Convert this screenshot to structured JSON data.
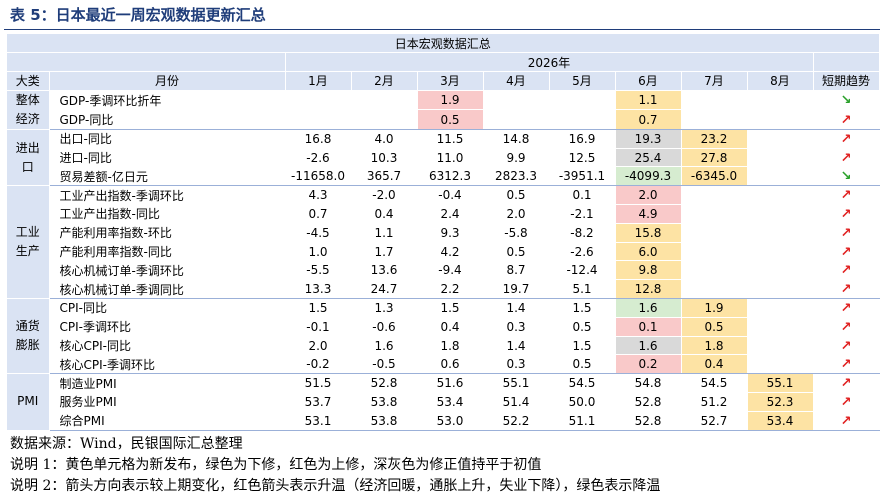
{
  "title": "表 5：日本最近一周宏观数据更新汇总",
  "table": {
    "caption": "日本宏观数据汇总",
    "year": "2026年",
    "headers": {
      "category": "大类",
      "month": "月份",
      "months": [
        "1月",
        "2月",
        "3月",
        "4月",
        "5月",
        "6月",
        "7月",
        "8月"
      ],
      "trend": "短期趋势"
    },
    "groups": [
      {
        "name": "整体经济",
        "rows": [
          {
            "label": "GDP-季调环比折年",
            "values": [
              "",
              "",
              "1.9",
              "",
              "",
              "1.1",
              "",
              ""
            ],
            "highlights": [
              "",
              "",
              "pink",
              "",
              "",
              "yellow",
              "",
              ""
            ],
            "trend": "down"
          },
          {
            "label": "GDP-同比",
            "values": [
              "",
              "",
              "0.5",
              "",
              "",
              "0.7",
              "",
              ""
            ],
            "highlights": [
              "",
              "",
              "pink",
              "",
              "",
              "yellow",
              "",
              ""
            ],
            "trend": "up"
          }
        ]
      },
      {
        "name": "进出口",
        "rows": [
          {
            "label": "出口-同比",
            "values": [
              "16.8",
              "4.0",
              "11.5",
              "14.8",
              "16.9",
              "19.3",
              "23.2",
              ""
            ],
            "highlights": [
              "",
              "",
              "",
              "",
              "",
              "gray",
              "yellow",
              ""
            ],
            "trend": "up"
          },
          {
            "label": "进口-同比",
            "values": [
              "-2.6",
              "10.3",
              "11.0",
              "9.9",
              "12.5",
              "25.4",
              "27.8",
              ""
            ],
            "highlights": [
              "",
              "",
              "",
              "",
              "",
              "gray",
              "yellow",
              ""
            ],
            "trend": "up"
          },
          {
            "label": "贸易差额-亿日元",
            "values": [
              "-11658.0",
              "365.7",
              "6312.3",
              "2823.3",
              "-3951.1",
              "-4099.3",
              "-6345.0",
              ""
            ],
            "highlights": [
              "",
              "",
              "",
              "",
              "",
              "green",
              "yellow",
              ""
            ],
            "trend": "down"
          }
        ]
      },
      {
        "name": "工业生产",
        "rows": [
          {
            "label": "工业产出指数-季调环比",
            "values": [
              "4.3",
              "-2.0",
              "-0.4",
              "0.5",
              "0.1",
              "2.0",
              "",
              ""
            ],
            "highlights": [
              "",
              "",
              "",
              "",
              "",
              "pink",
              "",
              ""
            ],
            "trend": "up"
          },
          {
            "label": "工业产出指数-同比",
            "values": [
              "0.7",
              "0.4",
              "2.4",
              "2.0",
              "-2.1",
              "4.9",
              "",
              ""
            ],
            "highlights": [
              "",
              "",
              "",
              "",
              "",
              "pink",
              "",
              ""
            ],
            "trend": "up"
          },
          {
            "label": "产能利用率指数-环比",
            "values": [
              "-4.5",
              "1.1",
              "9.3",
              "-5.8",
              "-8.2",
              "15.8",
              "",
              ""
            ],
            "highlights": [
              "",
              "",
              "",
              "",
              "",
              "yellow",
              "",
              ""
            ],
            "trend": "up"
          },
          {
            "label": "产能利用率指数-同比",
            "values": [
              "1.0",
              "1.7",
              "4.2",
              "0.5",
              "-2.6",
              "6.0",
              "",
              ""
            ],
            "highlights": [
              "",
              "",
              "",
              "",
              "",
              "yellow",
              "",
              ""
            ],
            "trend": "up"
          },
          {
            "label": "核心机械订单-季调环比",
            "values": [
              "-5.5",
              "13.6",
              "-9.4",
              "8.7",
              "-12.4",
              "9.8",
              "",
              ""
            ],
            "highlights": [
              "",
              "",
              "",
              "",
              "",
              "yellow",
              "",
              ""
            ],
            "trend": "up"
          },
          {
            "label": "核心机械订单-季调同比",
            "values": [
              "13.3",
              "24.7",
              "2.2",
              "19.7",
              "5.1",
              "12.8",
              "",
              ""
            ],
            "highlights": [
              "",
              "",
              "",
              "",
              "",
              "yellow",
              "",
              ""
            ],
            "trend": "up"
          }
        ]
      },
      {
        "name": "通货膨胀",
        "rows": [
          {
            "label": "CPI-同比",
            "values": [
              "1.5",
              "1.3",
              "1.5",
              "1.4",
              "1.5",
              "1.6",
              "1.9",
              ""
            ],
            "highlights": [
              "",
              "",
              "",
              "",
              "",
              "green",
              "yellow",
              ""
            ],
            "trend": "up"
          },
          {
            "label": "CPI-季调环比",
            "values": [
              "-0.1",
              "-0.6",
              "0.4",
              "0.3",
              "0.5",
              "0.1",
              "0.5",
              ""
            ],
            "highlights": [
              "",
              "",
              "",
              "",
              "",
              "pink",
              "yellow",
              ""
            ],
            "trend": "up"
          },
          {
            "label": "核心CPI-同比",
            "values": [
              "2.0",
              "1.6",
              "1.8",
              "1.4",
              "1.5",
              "1.6",
              "1.8",
              ""
            ],
            "highlights": [
              "",
              "",
              "",
              "",
              "",
              "gray",
              "yellow",
              ""
            ],
            "trend": "up"
          },
          {
            "label": "核心CPI-季调环比",
            "values": [
              "-0.2",
              "-0.5",
              "0.6",
              "0.3",
              "0.5",
              "0.2",
              "0.4",
              ""
            ],
            "highlights": [
              "",
              "",
              "",
              "",
              "",
              "pink",
              "yellow",
              ""
            ],
            "trend": "up"
          }
        ]
      },
      {
        "name": "PMI",
        "rows": [
          {
            "label": "制造业PMI",
            "values": [
              "51.5",
              "52.8",
              "51.6",
              "55.1",
              "54.5",
              "54.8",
              "54.5",
              "55.1"
            ],
            "highlights": [
              "",
              "",
              "",
              "",
              "",
              "",
              "",
              "yellow"
            ],
            "trend": "up"
          },
          {
            "label": "服务业PMI",
            "values": [
              "53.7",
              "53.8",
              "53.4",
              "51.4",
              "50.0",
              "52.8",
              "51.2",
              "52.3"
            ],
            "highlights": [
              "",
              "",
              "",
              "",
              "",
              "",
              "",
              "yellow"
            ],
            "trend": "up"
          },
          {
            "label": "综合PMI",
            "values": [
              "53.1",
              "53.8",
              "53.0",
              "52.2",
              "51.1",
              "52.8",
              "52.7",
              "53.4"
            ],
            "highlights": [
              "",
              "",
              "",
              "",
              "",
              "",
              "",
              "yellow"
            ],
            "trend": "up"
          }
        ]
      }
    ]
  },
  "arrows": {
    "up": "↗",
    "down": "↘"
  },
  "colors": {
    "pink": "#f9c9c9",
    "green": "#d6ecd0",
    "yellow": "#fde3a4",
    "gray": "#d9d9d9",
    "header": "#dae3f3",
    "up_arrow": "#e02020",
    "down_arrow": "#2aa02a"
  },
  "notes": {
    "source": "数据来源：Wind，民银国际汇总整理",
    "note1": "说明 1：黄色单元格为新发布，绿色为下修，红色为上修，深灰色为修正值持平于初值",
    "note2": "说明 2：箭头方向表示较上期变化，红色箭头表示升温（经济回暖，通胀上升，失业下降），绿色表示降温"
  }
}
